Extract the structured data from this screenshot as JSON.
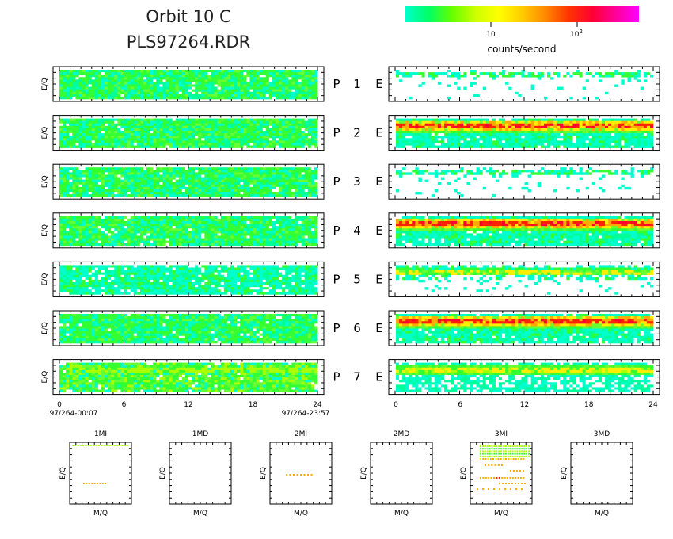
{
  "header": {
    "title_line1": "Orbit 10 C",
    "title_line2": "PLS97264.RDR"
  },
  "colorbar": {
    "label": "counts/second",
    "tick_10": "10",
    "tick_100_base": "10",
    "tick_100_exp": "2",
    "colors": [
      "#00ffcc",
      "#00ff66",
      "#66ff00",
      "#ccff00",
      "#ffff00",
      "#ffcc00",
      "#ff8800",
      "#ff3300",
      "#ff0033",
      "#ff0099",
      "#ff00ff"
    ]
  },
  "axes": {
    "ylabel": "E/Q",
    "xlabel_small": "M/Q",
    "time_ticks": [
      "0",
      "6",
      "12",
      "18",
      "24"
    ],
    "start_time": "97/264-00:07",
    "end_time": "97/264-23:57"
  },
  "chart_data": [
    {
      "type": "heatmap",
      "description_of_grid": "7 rows of paired spectrograms, left = P channel, right = E channel",
      "x_unit": "hours",
      "xlim": [
        0,
        24
      ],
      "rows": [
        {
          "row_label_p": "P",
          "row_number": "1",
          "row_label_e": "E",
          "p_level": "green",
          "e_level": "sparse-cyan"
        },
        {
          "row_label_p": "P",
          "row_number": "2",
          "row_label_e": "E",
          "p_level": "green",
          "e_level": "red-band"
        },
        {
          "row_label_p": "P",
          "row_number": "3",
          "row_label_e": "E",
          "p_level": "green",
          "e_level": "sparse-cyan"
        },
        {
          "row_label_p": "P",
          "row_number": "4",
          "row_label_e": "E",
          "p_level": "green",
          "e_level": "red-band"
        },
        {
          "row_label_p": "P",
          "row_number": "5",
          "row_label_e": "E",
          "p_level": "cyan-green",
          "e_level": "yellow-band-sparse"
        },
        {
          "row_label_p": "P",
          "row_number": "6",
          "row_label_e": "E",
          "p_level": "green",
          "e_level": "red-band"
        },
        {
          "row_label_p": "P",
          "row_number": "7",
          "row_label_e": "E",
          "p_level": "green-yellow",
          "e_level": "yellow-band"
        }
      ]
    },
    {
      "type": "scatter",
      "panels": [
        {
          "title": "1MI",
          "content": "points"
        },
        {
          "title": "1MD",
          "content": "empty"
        },
        {
          "title": "2MI",
          "content": "points"
        },
        {
          "title": "2MD",
          "content": "empty"
        },
        {
          "title": "3MI",
          "content": "points"
        },
        {
          "title": "3MD",
          "content": "empty"
        }
      ]
    }
  ]
}
